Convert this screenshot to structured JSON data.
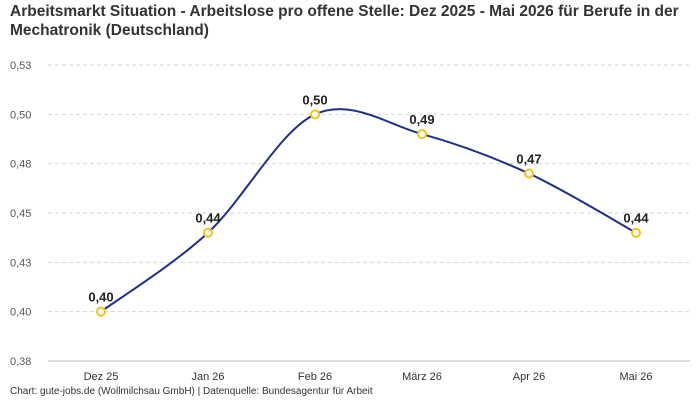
{
  "chart_data": {
    "type": "line",
    "title": "Arbeitsmarkt Situation - Arbeitslose pro offene Stelle: Dez 2025 - Mai 2026 für Berufe in der Mechatronik (Deutschland)",
    "categories": [
      "Dez 25",
      "Jan 26",
      "Feb 26",
      "März 26",
      "Apr 26",
      "Mai 26"
    ],
    "values": [
      0.4,
      0.44,
      0.5,
      0.49,
      0.47,
      0.44
    ],
    "data_labels": [
      "0,40",
      "0,44",
      "0,50",
      "0,49",
      "0,47",
      "0,44"
    ],
    "yticks": [
      0.375,
      0.4,
      0.425,
      0.45,
      0.475,
      0.5,
      0.525
    ],
    "ytick_labels": [
      "0,38",
      "0,40",
      "0,43",
      "0,45",
      "0,48",
      "0,50",
      "0,53"
    ],
    "ylim": [
      0.375,
      0.525
    ],
    "grid": true,
    "line_color": "#1f2f8a",
    "marker_color": "#f2c318"
  },
  "footer": "Chart: gute-jobs.de (Wollmilchsau GmbH) | Datenquelle: Bundesagentur für Arbeit"
}
